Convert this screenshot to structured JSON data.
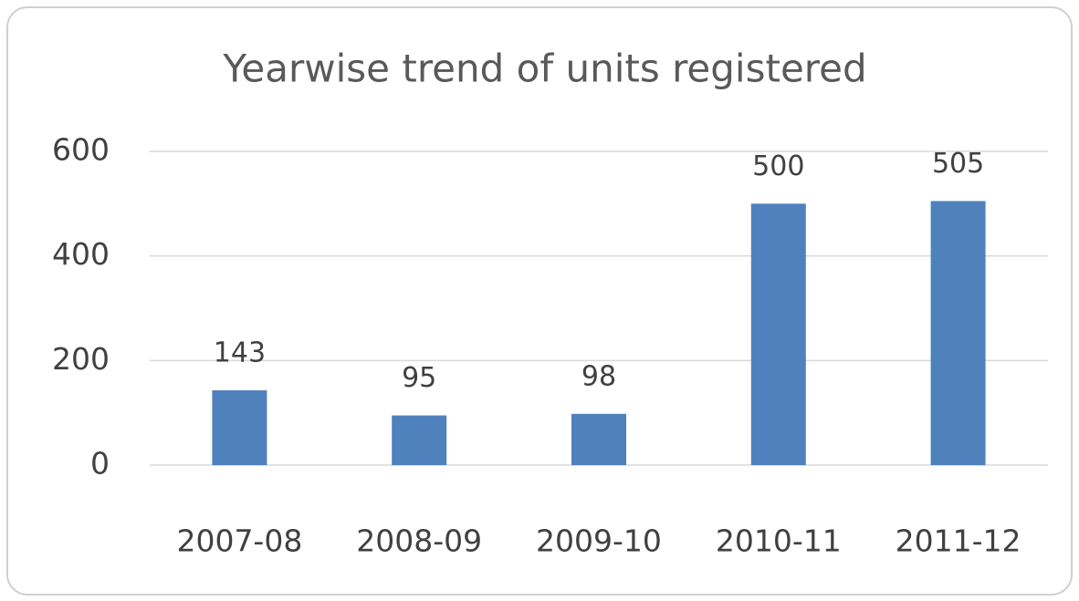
{
  "chart_data": {
    "type": "bar",
    "title": "Yearwise trend of units registered",
    "categories": [
      "2007-08",
      "2008-09",
      "2009-10",
      "2010-11",
      "2011-12"
    ],
    "values": [
      143,
      95,
      98,
      500,
      505
    ],
    "color": "#4f81bd",
    "ylim": [
      0,
      600
    ],
    "yticks": [
      0,
      200,
      400,
      600
    ],
    "grid": true
  }
}
